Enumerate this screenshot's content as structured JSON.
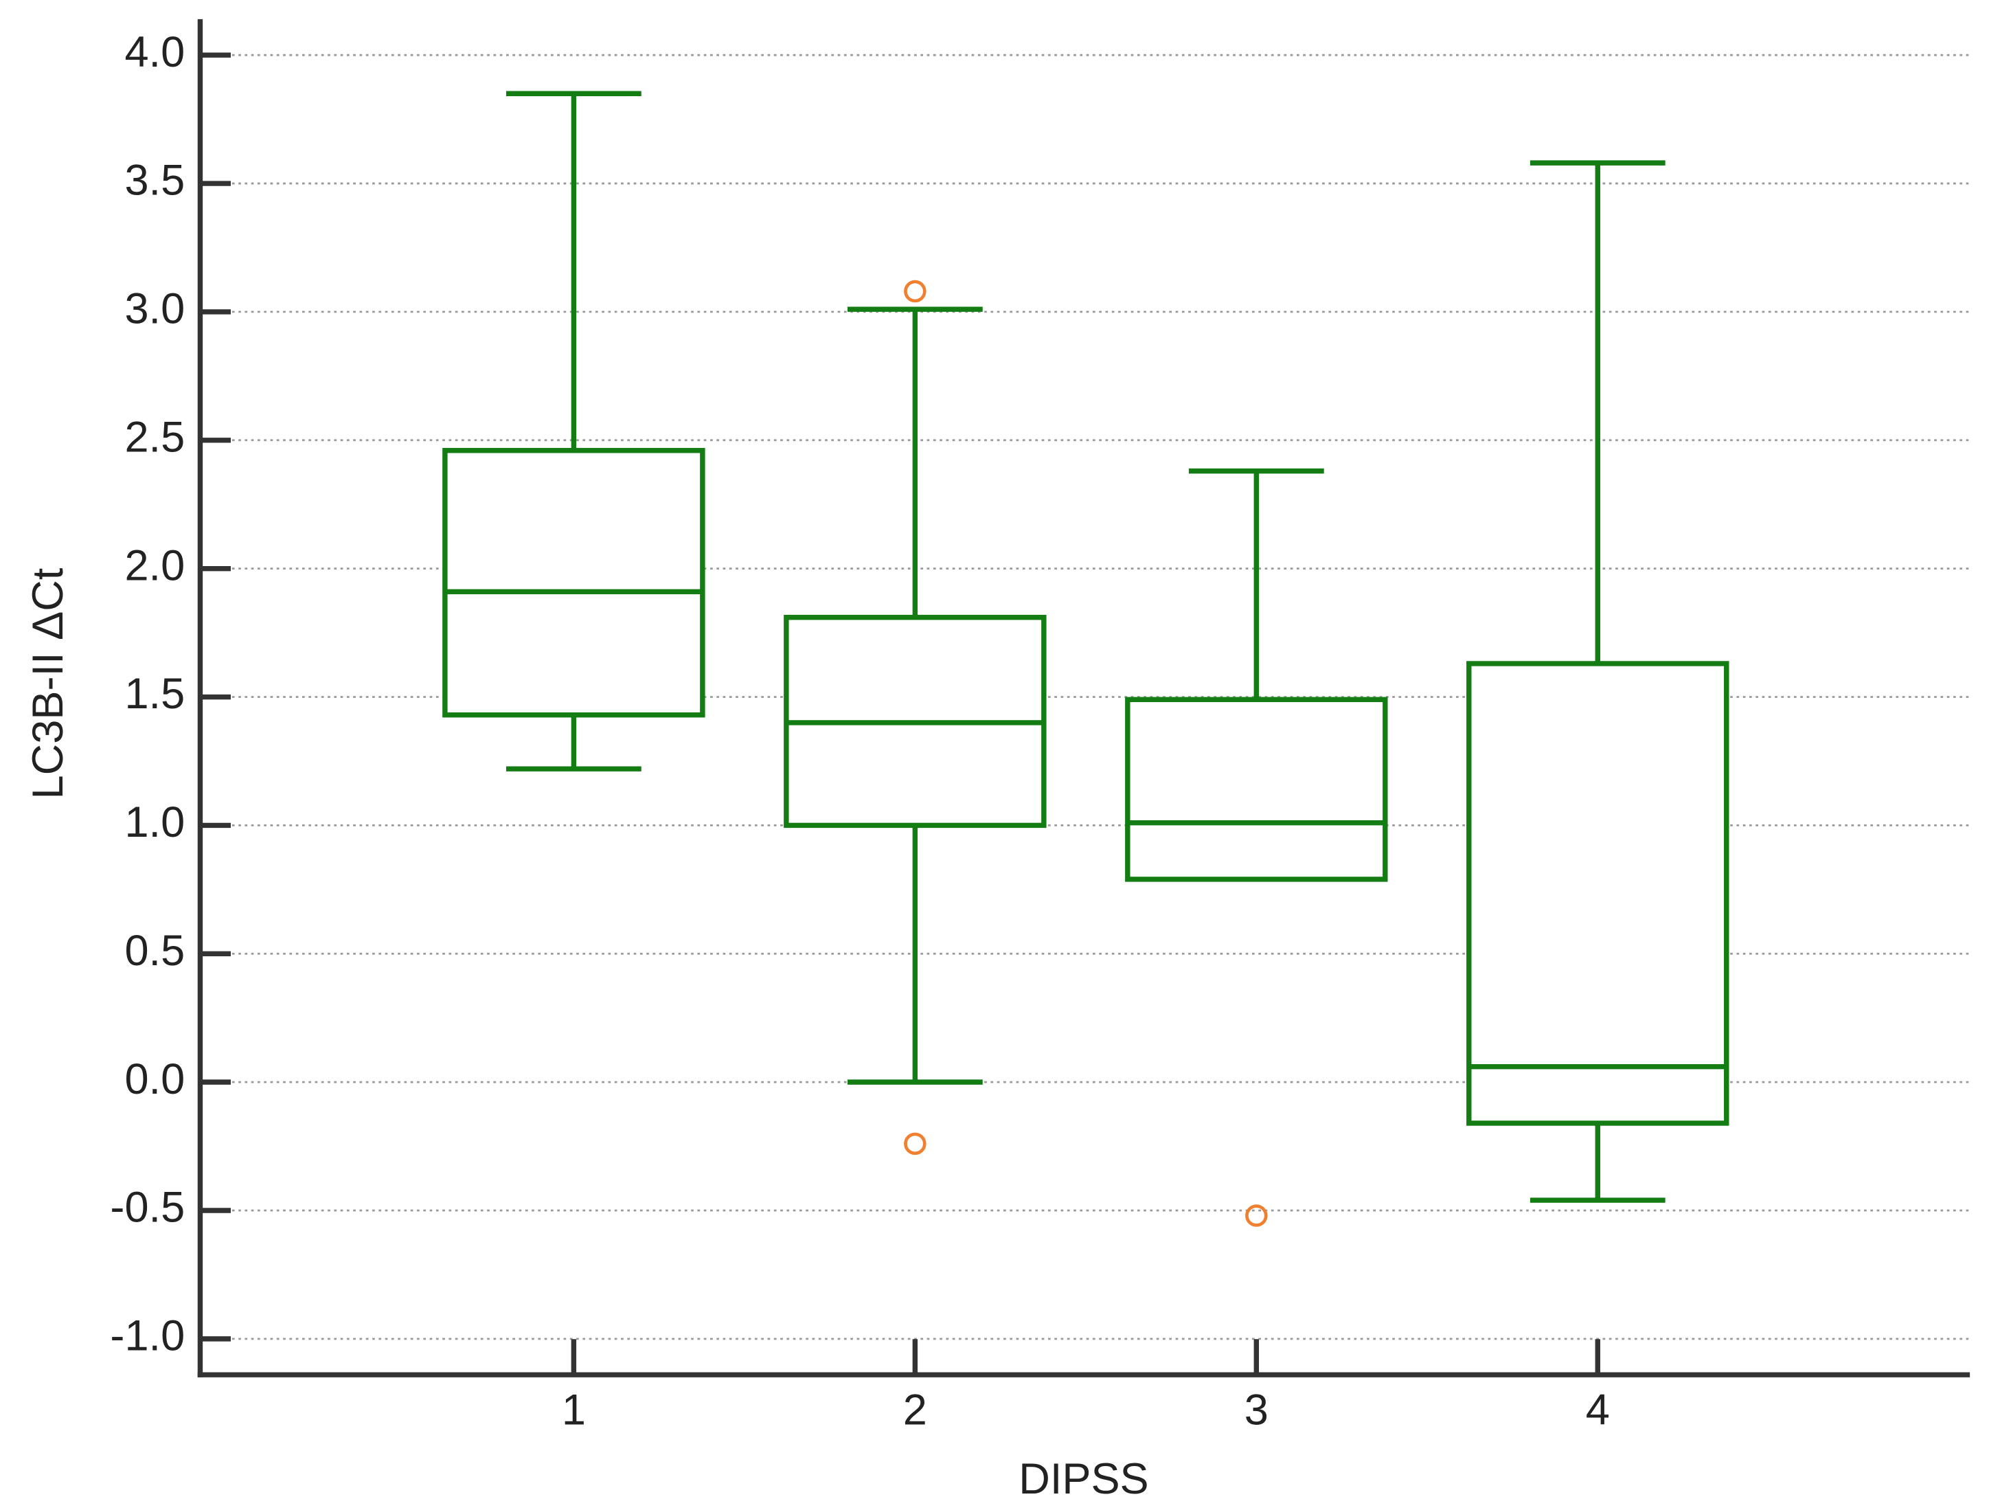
{
  "chart_data": {
    "type": "box",
    "x_label": "DIPSS",
    "y_label": "LC3B-II ΔCt",
    "categories": [
      "1",
      "2",
      "3",
      "4"
    ],
    "color": "#137c13",
    "outlier_color": "#f08030",
    "grid": true,
    "ylim": [
      -1.14,
      4.14
    ],
    "yticks": [
      {
        "value": -1,
        "label": "-1.0"
      },
      -0.5,
      {
        "value": 0,
        "label": "0.0"
      },
      0.5,
      {
        "value": 1,
        "label": "1.0"
      },
      1.5,
      {
        "value": 2,
        "label": "2.0"
      },
      2.5,
      {
        "value": 3,
        "label": "3.0"
      },
      3.5,
      {
        "value": 4,
        "label": "4.0"
      }
    ],
    "boxes": [
      {
        "whisker_low": 1.22,
        "q1": 1.43,
        "median": 1.91,
        "q3": 2.46,
        "whisker_high": 3.85,
        "outliers": []
      },
      {
        "whisker_low": 0.0,
        "q1": 1.0,
        "median": 1.4,
        "q3": 1.81,
        "whisker_high": 3.01,
        "outliers": [
          3.08,
          -0.24
        ]
      },
      {
        "whisker_low": 0.79,
        "q1": 0.79,
        "median": 1.01,
        "q3": 1.49,
        "whisker_high": 2.38,
        "outliers": [
          -0.52
        ]
      },
      {
        "whisker_low": -0.46,
        "q1": -0.16,
        "median": 0.06,
        "q3": 1.63,
        "whisker_high": 3.58,
        "outliers": []
      }
    ]
  }
}
